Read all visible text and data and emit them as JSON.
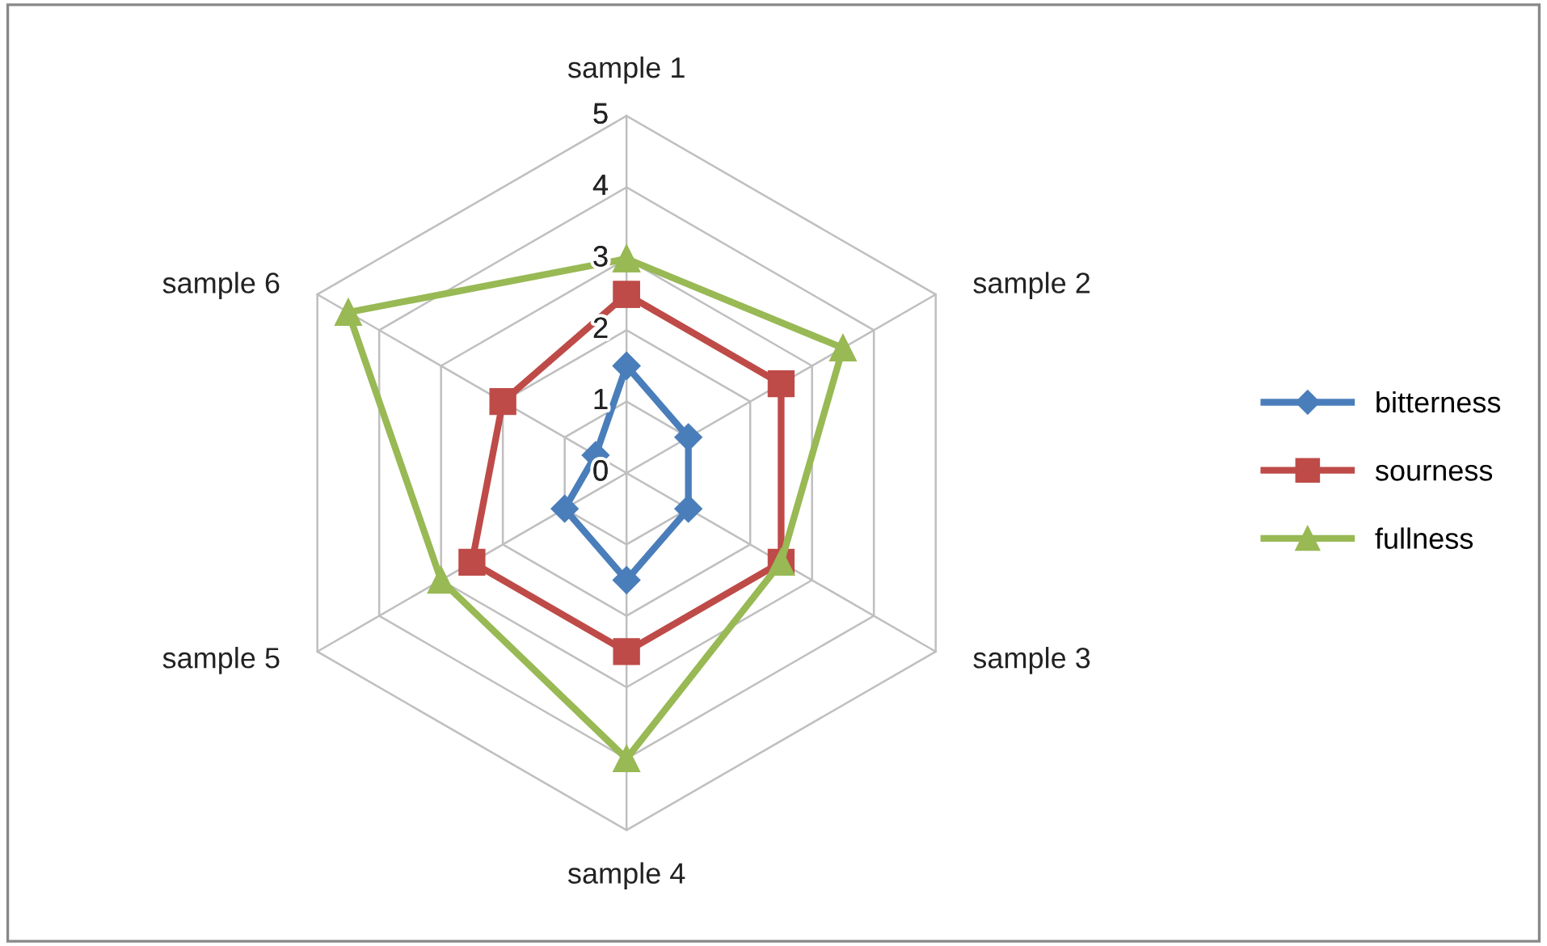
{
  "chart_data": {
    "type": "radar",
    "categories": [
      "sample 1",
      "sample 2",
      "sample 3",
      "sample 4",
      "sample 5",
      "sample 6"
    ],
    "ylim": [
      0,
      5
    ],
    "yticks": [
      0,
      1,
      2,
      3,
      4,
      5
    ],
    "grid": true,
    "legend": "right",
    "series": [
      {
        "name": "bitterness",
        "color": "#4a7ebb",
        "marker": "diamond",
        "values": [
          1.5,
          1,
          1,
          1.5,
          1,
          0.5
        ]
      },
      {
        "name": "sourness",
        "color": "#be4b48",
        "marker": "square",
        "values": [
          2.5,
          2.5,
          2.5,
          2.5,
          2.5,
          2
        ]
      },
      {
        "name": "fullness",
        "color": "#98b954",
        "marker": "triangle",
        "values": [
          3,
          3.5,
          2.5,
          4,
          3,
          4.5
        ]
      }
    ]
  }
}
